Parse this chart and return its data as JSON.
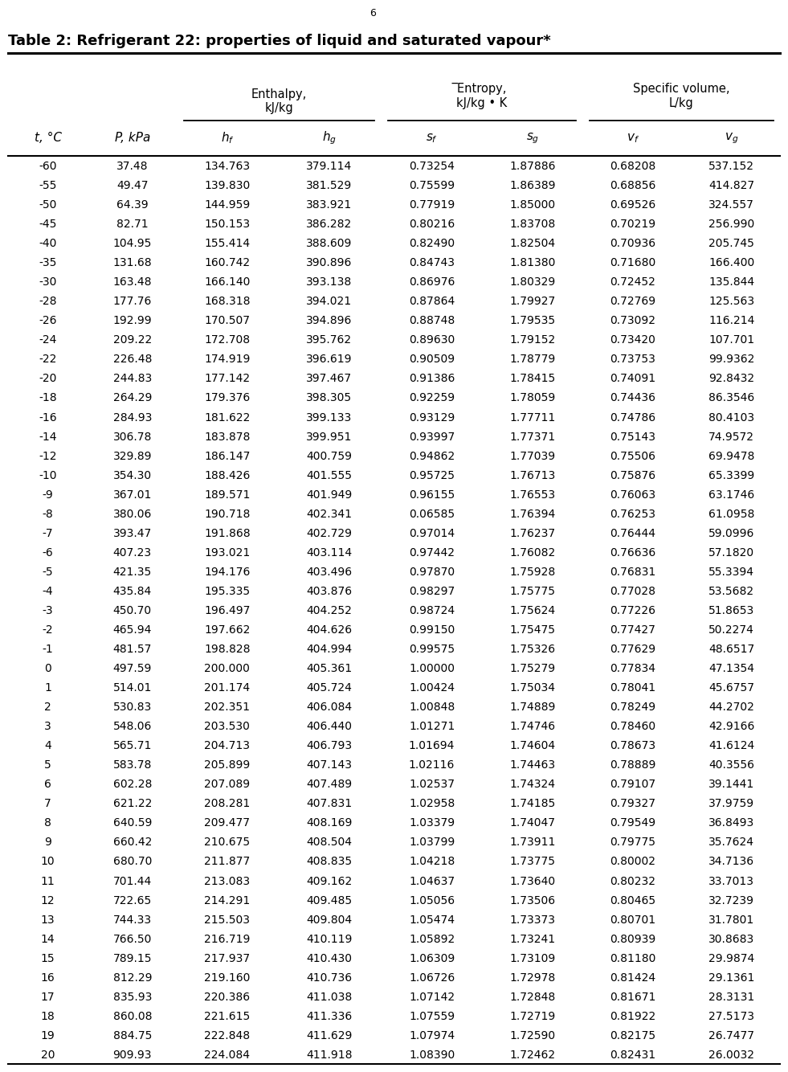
{
  "title": "Table 2: Refrigerant 22: properties of liquid and saturated vapour*",
  "page_number": "6",
  "background_color": "#ffffff",
  "text_color": "#000000",
  "title_fontsize": 13,
  "header_fontsize": 10.5,
  "data_fontsize": 10,
  "rows": [
    [
      "-60",
      "37.48",
      "134.763",
      "379.114",
      "0.73254",
      "1.87886",
      "0.68208",
      "537.152"
    ],
    [
      "-55",
      "49.47",
      "139.830",
      "381.529",
      "0.75599",
      "1.86389",
      "0.68856",
      "414.827"
    ],
    [
      "-50",
      "64.39",
      "144.959",
      "383.921",
      "0.77919",
      "1.85000",
      "0.69526",
      "324.557"
    ],
    [
      "-45",
      "82.71",
      "150.153",
      "386.282",
      "0.80216",
      "1.83708",
      "0.70219",
      "256.990"
    ],
    [
      "-40",
      "104.95",
      "155.414",
      "388.609",
      "0.82490",
      "1.82504",
      "0.70936",
      "205.745"
    ],
    [
      "-35",
      "131.68",
      "160.742",
      "390.896",
      "0.84743",
      "1.81380",
      "0.71680",
      "166.400"
    ],
    [
      "-30",
      "163.48",
      "166.140",
      "393.138",
      "0.86976",
      "1.80329",
      "0.72452",
      "135.844"
    ],
    [
      "-28",
      "177.76",
      "168.318",
      "394.021",
      "0.87864",
      "1.79927",
      "0.72769",
      "125.563"
    ],
    [
      "-26",
      "192.99",
      "170.507",
      "394.896",
      "0.88748",
      "1.79535",
      "0.73092",
      "116.214"
    ],
    [
      "-24",
      "209.22",
      "172.708",
      "395.762",
      "0.89630",
      "1.79152",
      "0.73420",
      "107.701"
    ],
    [
      "-22",
      "226.48",
      "174.919",
      "396.619",
      "0.90509",
      "1.78779",
      "0.73753",
      "99.9362"
    ],
    [
      "-20",
      "244.83",
      "177.142",
      "397.467",
      "0.91386",
      "1.78415",
      "0.74091",
      "92.8432"
    ],
    [
      "-18",
      "264.29",
      "179.376",
      "398.305",
      "0.92259",
      "1.78059",
      "0.74436",
      "86.3546"
    ],
    [
      "-16",
      "284.93",
      "181.622",
      "399.133",
      "0.93129",
      "1.77711",
      "0.74786",
      "80.4103"
    ],
    [
      "-14",
      "306.78",
      "183.878",
      "399.951",
      "0.93997",
      "1.77371",
      "0.75143",
      "74.9572"
    ],
    [
      "-12",
      "329.89",
      "186.147",
      "400.759",
      "0.94862",
      "1.77039",
      "0.75506",
      "69.9478"
    ],
    [
      "-10",
      "354.30",
      "188.426",
      "401.555",
      "0.95725",
      "1.76713",
      "0.75876",
      "65.3399"
    ],
    [
      "-9",
      "367.01",
      "189.571",
      "401.949",
      "0.96155",
      "1.76553",
      "0.76063",
      "63.1746"
    ],
    [
      "-8",
      "380.06",
      "190.718",
      "402.341",
      "0.06585",
      "1.76394",
      "0.76253",
      "61.0958"
    ],
    [
      "-7",
      "393.47",
      "191.868",
      "402.729",
      "0.97014",
      "1.76237",
      "0.76444",
      "59.0996"
    ],
    [
      "-6",
      "407.23",
      "193.021",
      "403.114",
      "0.97442",
      "1.76082",
      "0.76636",
      "57.1820"
    ],
    [
      "-5",
      "421.35",
      "194.176",
      "403.496",
      "0.97870",
      "1.75928",
      "0.76831",
      "55.3394"
    ],
    [
      "-4",
      "435.84",
      "195.335",
      "403.876",
      "0.98297",
      "1.75775",
      "0.77028",
      "53.5682"
    ],
    [
      "-3",
      "450.70",
      "196.497",
      "404.252",
      "0.98724",
      "1.75624",
      "0.77226",
      "51.8653"
    ],
    [
      "-2",
      "465.94",
      "197.662",
      "404.626",
      "0.99150",
      "1.75475",
      "0.77427",
      "50.2274"
    ],
    [
      "-1",
      "481.57",
      "198.828",
      "404.994",
      "0.99575",
      "1.75326",
      "0.77629",
      "48.6517"
    ],
    [
      "0",
      "497.59",
      "200.000",
      "405.361",
      "1.00000",
      "1.75279",
      "0.77834",
      "47.1354"
    ],
    [
      "1",
      "514.01",
      "201.174",
      "405.724",
      "1.00424",
      "1.75034",
      "0.78041",
      "45.6757"
    ],
    [
      "2",
      "530.83",
      "202.351",
      "406.084",
      "1.00848",
      "1.74889",
      "0.78249",
      "44.2702"
    ],
    [
      "3",
      "548.06",
      "203.530",
      "406.440",
      "1.01271",
      "1.74746",
      "0.78460",
      "42.9166"
    ],
    [
      "4",
      "565.71",
      "204.713",
      "406.793",
      "1.01694",
      "1.74604",
      "0.78673",
      "41.6124"
    ],
    [
      "5",
      "583.78",
      "205.899",
      "407.143",
      "1.02116",
      "1.74463",
      "0.78889",
      "40.3556"
    ],
    [
      "6",
      "602.28",
      "207.089",
      "407.489",
      "1.02537",
      "1.74324",
      "0.79107",
      "39.1441"
    ],
    [
      "7",
      "621.22",
      "208.281",
      "407.831",
      "1.02958",
      "1.74185",
      "0.79327",
      "37.9759"
    ],
    [
      "8",
      "640.59",
      "209.477",
      "408.169",
      "1.03379",
      "1.74047",
      "0.79549",
      "36.8493"
    ],
    [
      "9",
      "660.42",
      "210.675",
      "408.504",
      "1.03799",
      "1.73911",
      "0.79775",
      "35.7624"
    ],
    [
      "10",
      "680.70",
      "211.877",
      "408.835",
      "1.04218",
      "1.73775",
      "0.80002",
      "34.7136"
    ],
    [
      "11",
      "701.44",
      "213.083",
      "409.162",
      "1.04637",
      "1.73640",
      "0.80232",
      "33.7013"
    ],
    [
      "12",
      "722.65",
      "214.291",
      "409.485",
      "1.05056",
      "1.73506",
      "0.80465",
      "32.7239"
    ],
    [
      "13",
      "744.33",
      "215.503",
      "409.804",
      "1.05474",
      "1.73373",
      "0.80701",
      "31.7801"
    ],
    [
      "14",
      "766.50",
      "216.719",
      "410.119",
      "1.05892",
      "1.73241",
      "0.80939",
      "30.8683"
    ],
    [
      "15",
      "789.15",
      "217.937",
      "410.430",
      "1.06309",
      "1.73109",
      "0.81180",
      "29.9874"
    ],
    [
      "16",
      "812.29",
      "219.160",
      "410.736",
      "1.06726",
      "1.72978",
      "0.81424",
      "29.1361"
    ],
    [
      "17",
      "835.93",
      "220.386",
      "411.038",
      "1.07142",
      "1.72848",
      "0.81671",
      "28.3131"
    ],
    [
      "18",
      "860.08",
      "221.615",
      "411.336",
      "1.07559",
      "1.72719",
      "0.81922",
      "27.5173"
    ],
    [
      "19",
      "884.75",
      "222.848",
      "411.629",
      "1.07974",
      "1.72590",
      "0.82175",
      "26.7477"
    ],
    [
      "20",
      "909.93",
      "224.084",
      "411.918",
      "1.08390",
      "1.72462",
      "0.82431",
      "26.0032"
    ]
  ]
}
